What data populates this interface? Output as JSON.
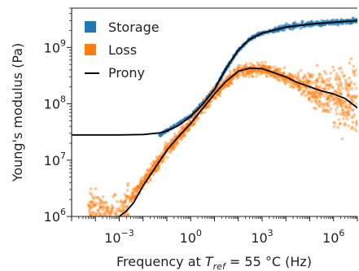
{
  "chart_data": {
    "type": "line",
    "title": "",
    "xlabel": {
      "prefix": "Frequency at ",
      "symbol": "T",
      "subscript": "ref",
      "suffix": " = 55 °C (Hz)"
    },
    "ylabel": "Young's modulus (Pa)",
    "x_scale": "log",
    "y_scale": "log",
    "xlim": [
      1e-05,
      10000000.0
    ],
    "ylim": [
      1000000.0,
      5000000000.0
    ],
    "x_ticks": [
      {
        "value": 0.001,
        "base": "10",
        "exp": "−3"
      },
      {
        "value": 1,
        "base": "10",
        "exp": "0"
      },
      {
        "value": 1000,
        "base": "10",
        "exp": "3"
      },
      {
        "value": 1000000,
        "base": "10",
        "exp": "6"
      }
    ],
    "y_ticks": [
      {
        "value": 1000000,
        "base": "10",
        "exp": "6"
      },
      {
        "value": 10000000,
        "base": "10",
        "exp": "7"
      },
      {
        "value": 100000000,
        "base": "10",
        "exp": "8"
      },
      {
        "value": 1000000000,
        "base": "10",
        "exp": "9"
      }
    ],
    "grid": false,
    "legend_position": "top-left",
    "series": [
      {
        "name": "Storage",
        "kind": "scatter-band",
        "color": "#1f77b4",
        "x": [
          0.05,
          1,
          10,
          30,
          100,
          300,
          1000,
          10000,
          100000,
          1000000,
          10000000
        ],
        "y": [
          28000000,
          60000000,
          180000000,
          420000000,
          900000000,
          1400000000,
          1800000000,
          2300000000,
          2600000000,
          2800000000,
          3000000000
        ]
      },
      {
        "name": "Loss",
        "kind": "scatter-band",
        "color": "#ff7f0e",
        "x": [
          5e-05,
          0.0003,
          0.001,
          0.003,
          0.01,
          0.1,
          1,
          10,
          100,
          1000,
          10000,
          100000,
          1000000,
          10000000
        ],
        "y": [
          1300000,
          1000000,
          1100000,
          1900000,
          4000000,
          15000000,
          45000000,
          150000000,
          380000000,
          420000000,
          300000000,
          200000000,
          150000000,
          100000000
        ]
      },
      {
        "name": "Prony",
        "kind": "line",
        "color": "#000000",
        "parts": [
          {
            "label": "storage",
            "x": [
              1e-05,
              0.001,
              0.01,
              0.05,
              0.1,
              0.3,
              1,
              3,
              10,
              30,
              100,
              300,
              1000,
              10000,
              100000,
              1000000,
              10000000
            ],
            "y": [
              28000000,
              28000000,
              28500000,
              30500000,
              33000000,
              41000000,
              60000000,
              95000000,
              180000000,
              420000000,
              900000000,
              1400000000,
              1800000000,
              2300000000,
              2600000000,
              2800000000,
              3000000000
            ]
          },
          {
            "label": "loss",
            "x": [
              0.001,
              0.002,
              0.004,
              0.01,
              0.03,
              0.1,
              0.3,
              1,
              3,
              10,
              30,
              100,
              300,
              1000,
              3000,
              10000,
              30000,
              100000,
              300000,
              1000000,
              3000000,
              10000000
            ],
            "y": [
              1000000,
              1250000,
              1750000,
              3500000,
              7000000,
              15000000,
              26000000,
              45000000,
              80000000,
              150000000,
              250000000,
              380000000,
              430000000,
              420000000,
              360000000,
              300000000,
              240000000,
              200000000,
              170000000,
              150000000,
              125000000,
              85000000
            ]
          }
        ]
      }
    ]
  }
}
